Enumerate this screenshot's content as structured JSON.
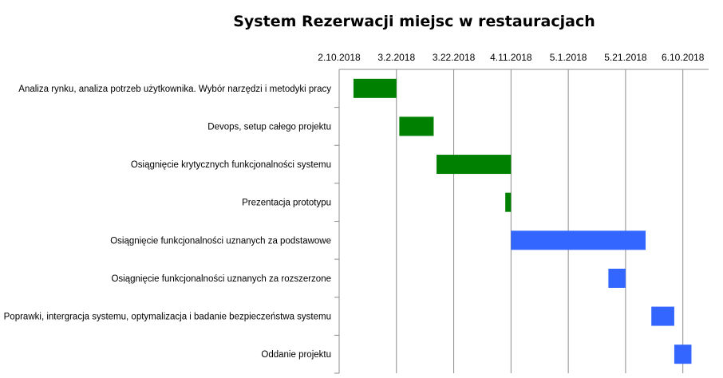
{
  "chart_data": {
    "type": "gantt",
    "title": "System Rezerwacji miejsc w restauracjach",
    "x_ticks": [
      "2.10.2018",
      "3.2.2018",
      "3.22.2018",
      "4.11.2018",
      "5.1.2018",
      "5.21.2018",
      "6.10.2018"
    ],
    "xlim": [
      "2018-02-10",
      "2018-06-19"
    ],
    "tasks": [
      {
        "label": "Analiza rynku, analiza potrzeb użytkownika. Wybór narzędzi i metodyki pracy",
        "start": "2018-02-15",
        "end": "2018-03-02",
        "color": "#008000"
      },
      {
        "label": "Devops, setup całego projektu",
        "start": "2018-03-03",
        "end": "2018-03-15",
        "color": "#008000"
      },
      {
        "label": "Osiągnięcie krytycznych funkcjonalności systemu",
        "start": "2018-03-16",
        "end": "2018-04-11",
        "color": "#008000"
      },
      {
        "label": "Prezentacja prototypu",
        "start": "2018-04-09",
        "end": "2018-04-11",
        "color": "#008000"
      },
      {
        "label": "Osiągnięcie funkcjonalności uznanych za podstawowe",
        "start": "2018-04-11",
        "end": "2018-05-28",
        "color": "#3366ff"
      },
      {
        "label": "Osiągnięcie funkcjonalności uznanych za rozszerzone",
        "start": "2018-05-15",
        "end": "2018-05-21",
        "color": "#3366ff"
      },
      {
        "label": "Poprawki, intergracja systemu, optymalizacja i badanie bezpieczeństwa systemu",
        "start": "2018-05-30",
        "end": "2018-06-07",
        "color": "#3366ff"
      },
      {
        "label": "Oddanie projektu",
        "start": "2018-06-07",
        "end": "2018-06-13",
        "color": "#3366ff"
      }
    ],
    "grid": true
  }
}
